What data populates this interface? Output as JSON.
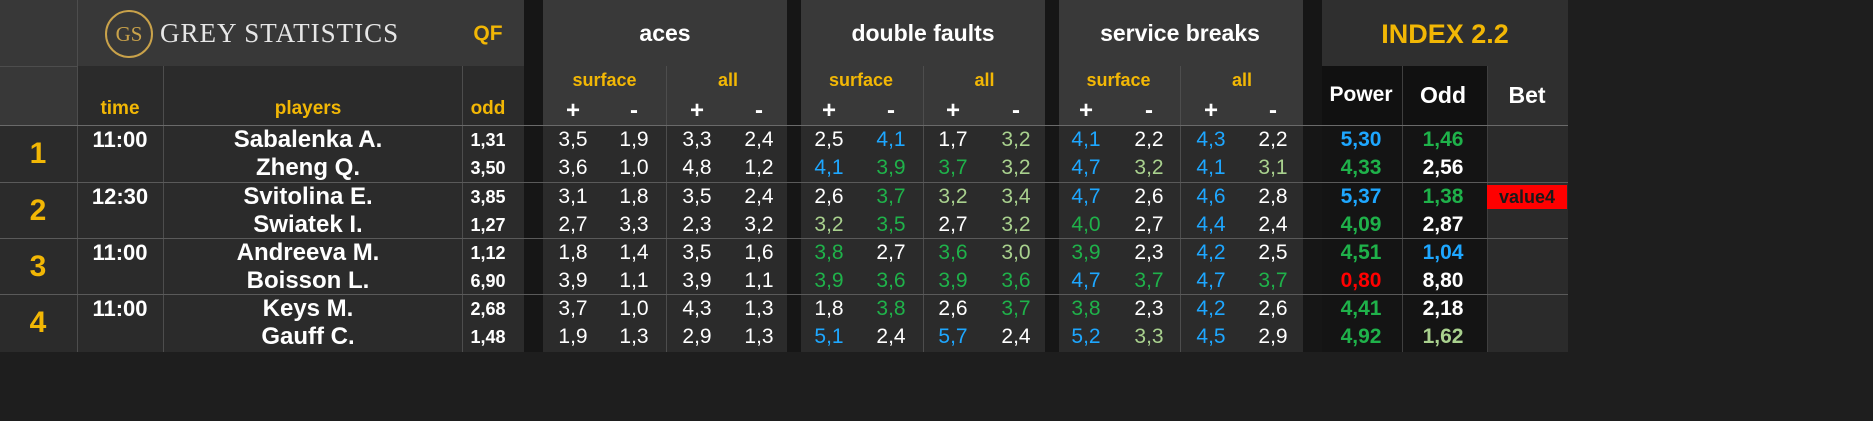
{
  "brand": {
    "logo_mark": "GS",
    "name": "GREY STATISTICS"
  },
  "round": "QF",
  "groups": {
    "aces": "aces",
    "double_faults": "double faults",
    "service_breaks": "service breaks",
    "index": "INDEX 2.2"
  },
  "sub_labels": {
    "surface": "surface",
    "all": "all",
    "plus": "+",
    "minus": "-"
  },
  "columns": {
    "time": "time",
    "players": "players",
    "odd": "odd",
    "power": "Power",
    "index_odd": "Odd",
    "bet": "Bet"
  },
  "colors": {
    "white": "#ffffff",
    "blue": "#1ea7ff",
    "green": "#1fb24a",
    "lightgreen": "#a9d18e",
    "red": "#ff0000",
    "yellow": "#f2b705",
    "bet_bg": "#ff0000"
  },
  "matches": [
    {
      "num": "1",
      "time": "11:00",
      "bet": "",
      "players": [
        {
          "name": "Sabalenka A.",
          "odd": "1,31",
          "stats": [
            {
              "v": "3,5",
              "c": "white"
            },
            {
              "v": "1,9",
              "c": "white"
            },
            {
              "v": "3,3",
              "c": "white"
            },
            {
              "v": "2,4",
              "c": "white"
            },
            {
              "v": "2,5",
              "c": "white"
            },
            {
              "v": "4,1",
              "c": "blue"
            },
            {
              "v": "1,7",
              "c": "white"
            },
            {
              "v": "3,2",
              "c": "lightgreen"
            },
            {
              "v": "4,1",
              "c": "blue"
            },
            {
              "v": "2,2",
              "c": "white"
            },
            {
              "v": "4,3",
              "c": "blue"
            },
            {
              "v": "2,2",
              "c": "white"
            }
          ],
          "power": {
            "v": "5,30",
            "c": "blue"
          },
          "index_odd": {
            "v": "1,46",
            "c": "green"
          }
        },
        {
          "name": "Zheng Q.",
          "odd": "3,50",
          "stats": [
            {
              "v": "3,6",
              "c": "white"
            },
            {
              "v": "1,0",
              "c": "white"
            },
            {
              "v": "4,8",
              "c": "white"
            },
            {
              "v": "1,2",
              "c": "white"
            },
            {
              "v": "4,1",
              "c": "blue"
            },
            {
              "v": "3,9",
              "c": "green"
            },
            {
              "v": "3,7",
              "c": "green"
            },
            {
              "v": "3,2",
              "c": "lightgreen"
            },
            {
              "v": "4,7",
              "c": "blue"
            },
            {
              "v": "3,2",
              "c": "lightgreen"
            },
            {
              "v": "4,1",
              "c": "blue"
            },
            {
              "v": "3,1",
              "c": "lightgreen"
            }
          ],
          "power": {
            "v": "4,33",
            "c": "green"
          },
          "index_odd": {
            "v": "2,56",
            "c": "white"
          }
        }
      ]
    },
    {
      "num": "2",
      "time": "12:30",
      "bet": "value4",
      "players": [
        {
          "name": "Svitolina E.",
          "odd": "3,85",
          "stats": [
            {
              "v": "3,1",
              "c": "white"
            },
            {
              "v": "1,8",
              "c": "white"
            },
            {
              "v": "3,5",
              "c": "white"
            },
            {
              "v": "2,4",
              "c": "white"
            },
            {
              "v": "2,6",
              "c": "white"
            },
            {
              "v": "3,7",
              "c": "green"
            },
            {
              "v": "3,2",
              "c": "lightgreen"
            },
            {
              "v": "3,4",
              "c": "lightgreen"
            },
            {
              "v": "4,7",
              "c": "blue"
            },
            {
              "v": "2,6",
              "c": "white"
            },
            {
              "v": "4,6",
              "c": "blue"
            },
            {
              "v": "2,8",
              "c": "white"
            }
          ],
          "power": {
            "v": "5,37",
            "c": "blue"
          },
          "index_odd": {
            "v": "1,38",
            "c": "green"
          }
        },
        {
          "name": "Swiatek I.",
          "odd": "1,27",
          "stats": [
            {
              "v": "2,7",
              "c": "white"
            },
            {
              "v": "3,3",
              "c": "white"
            },
            {
              "v": "2,3",
              "c": "white"
            },
            {
              "v": "3,2",
              "c": "white"
            },
            {
              "v": "3,2",
              "c": "lightgreen"
            },
            {
              "v": "3,5",
              "c": "green"
            },
            {
              "v": "2,7",
              "c": "white"
            },
            {
              "v": "3,2",
              "c": "lightgreen"
            },
            {
              "v": "4,0",
              "c": "green"
            },
            {
              "v": "2,7",
              "c": "white"
            },
            {
              "v": "4,4",
              "c": "blue"
            },
            {
              "v": "2,4",
              "c": "white"
            }
          ],
          "power": {
            "v": "4,09",
            "c": "green"
          },
          "index_odd": {
            "v": "2,87",
            "c": "white"
          }
        }
      ]
    },
    {
      "num": "3",
      "time": "11:00",
      "bet": "",
      "players": [
        {
          "name": "Andreeva M.",
          "odd": "1,12",
          "stats": [
            {
              "v": "1,8",
              "c": "white"
            },
            {
              "v": "1,4",
              "c": "white"
            },
            {
              "v": "3,5",
              "c": "white"
            },
            {
              "v": "1,6",
              "c": "white"
            },
            {
              "v": "3,8",
              "c": "green"
            },
            {
              "v": "2,7",
              "c": "white"
            },
            {
              "v": "3,6",
              "c": "green"
            },
            {
              "v": "3,0",
              "c": "lightgreen"
            },
            {
              "v": "3,9",
              "c": "green"
            },
            {
              "v": "2,3",
              "c": "white"
            },
            {
              "v": "4,2",
              "c": "blue"
            },
            {
              "v": "2,5",
              "c": "white"
            }
          ],
          "power": {
            "v": "4,51",
            "c": "green"
          },
          "index_odd": {
            "v": "1,04",
            "c": "blue"
          }
        },
        {
          "name": "Boisson L.",
          "odd": "6,90",
          "stats": [
            {
              "v": "3,9",
              "c": "white"
            },
            {
              "v": "1,1",
              "c": "white"
            },
            {
              "v": "3,9",
              "c": "white"
            },
            {
              "v": "1,1",
              "c": "white"
            },
            {
              "v": "3,9",
              "c": "green"
            },
            {
              "v": "3,6",
              "c": "green"
            },
            {
              "v": "3,9",
              "c": "green"
            },
            {
              "v": "3,6",
              "c": "green"
            },
            {
              "v": "4,7",
              "c": "blue"
            },
            {
              "v": "3,7",
              "c": "green"
            },
            {
              "v": "4,7",
              "c": "blue"
            },
            {
              "v": "3,7",
              "c": "green"
            }
          ],
          "power": {
            "v": "0,80",
            "c": "red"
          },
          "index_odd": {
            "v": "8,80",
            "c": "white"
          }
        }
      ]
    },
    {
      "num": "4",
      "time": "11:00",
      "bet": "",
      "players": [
        {
          "name": "Keys M.",
          "odd": "2,68",
          "stats": [
            {
              "v": "3,7",
              "c": "white"
            },
            {
              "v": "1,0",
              "c": "white"
            },
            {
              "v": "4,3",
              "c": "white"
            },
            {
              "v": "1,3",
              "c": "white"
            },
            {
              "v": "1,8",
              "c": "white"
            },
            {
              "v": "3,8",
              "c": "green"
            },
            {
              "v": "2,6",
              "c": "white"
            },
            {
              "v": "3,7",
              "c": "green"
            },
            {
              "v": "3,8",
              "c": "green"
            },
            {
              "v": "2,3",
              "c": "white"
            },
            {
              "v": "4,2",
              "c": "blue"
            },
            {
              "v": "2,6",
              "c": "white"
            }
          ],
          "power": {
            "v": "4,41",
            "c": "green"
          },
          "index_odd": {
            "v": "2,18",
            "c": "white"
          }
        },
        {
          "name": "Gauff C.",
          "odd": "1,48",
          "stats": [
            {
              "v": "1,9",
              "c": "white"
            },
            {
              "v": "1,3",
              "c": "white"
            },
            {
              "v": "2,9",
              "c": "white"
            },
            {
              "v": "1,3",
              "c": "white"
            },
            {
              "v": "5,1",
              "c": "blue"
            },
            {
              "v": "2,4",
              "c": "white"
            },
            {
              "v": "5,7",
              "c": "blue"
            },
            {
              "v": "2,4",
              "c": "white"
            },
            {
              "v": "5,2",
              "c": "blue"
            },
            {
              "v": "3,3",
              "c": "lightgreen"
            },
            {
              "v": "4,5",
              "c": "blue"
            },
            {
              "v": "2,9",
              "c": "white"
            }
          ],
          "power": {
            "v": "4,92",
            "c": "green"
          },
          "index_odd": {
            "v": "1,62",
            "c": "lightgreen"
          }
        }
      ]
    }
  ]
}
